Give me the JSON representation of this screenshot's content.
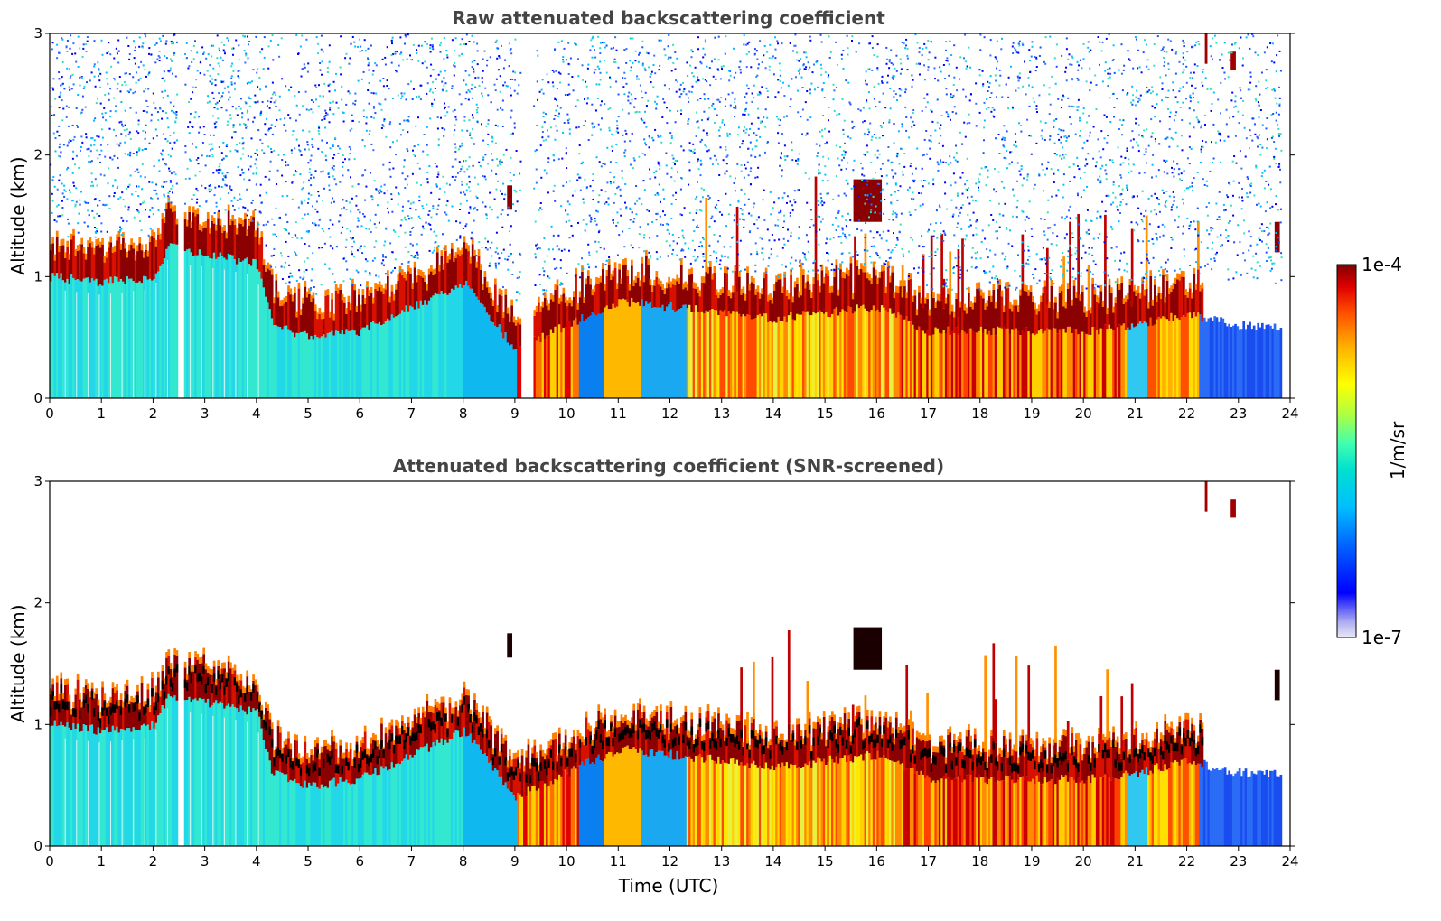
{
  "chart_data": [
    {
      "type": "heatmap",
      "title": "Raw attenuated backscattering coefficient",
      "xlabel": "",
      "ylabel": "Altitude (km)",
      "xlim": [
        0,
        24
      ],
      "ylim": [
        0,
        3
      ],
      "x_ticks": [
        "0",
        "1",
        "2",
        "3",
        "4",
        "5",
        "6",
        "7",
        "8",
        "9",
        "10",
        "11",
        "12",
        "13",
        "14",
        "15",
        "16",
        "17",
        "18",
        "19",
        "20",
        "21",
        "22",
        "23",
        "24"
      ],
      "y_ticks": [
        "0",
        "1",
        "2",
        "3"
      ],
      "colorscale": "jet",
      "grid": false,
      "data_gaps_utc": [
        [
          2.45,
          2.6
        ],
        [
          9.1,
          9.35
        ]
      ],
      "cloud_layer_base_km": [
        [
          0.0,
          1.0
        ],
        [
          1.0,
          0.95
        ],
        [
          2.0,
          1.0
        ],
        [
          2.3,
          1.25
        ],
        [
          2.7,
          1.2
        ],
        [
          3.5,
          1.15
        ],
        [
          4.0,
          1.1
        ],
        [
          4.3,
          0.6
        ],
        [
          5.0,
          0.5
        ],
        [
          6.0,
          0.55
        ],
        [
          7.0,
          0.75
        ],
        [
          8.0,
          0.95
        ],
        [
          9.0,
          0.4
        ],
        [
          10.0,
          0.6
        ],
        [
          11.0,
          0.8
        ],
        [
          12.0,
          0.75
        ],
        [
          13.0,
          0.7
        ],
        [
          14.0,
          0.65
        ],
        [
          15.0,
          0.7
        ],
        [
          16.0,
          0.75
        ],
        [
          17.0,
          0.55
        ],
        [
          18.0,
          0.55
        ],
        [
          19.0,
          0.55
        ],
        [
          20.0,
          0.55
        ],
        [
          21.0,
          0.6
        ],
        [
          22.0,
          0.7
        ],
        [
          23.0,
          0.6
        ],
        [
          23.8,
          0.6
        ]
      ]
    },
    {
      "type": "heatmap",
      "title": "Attenuated backscattering coefficient (SNR-screened)",
      "xlabel": "Time (UTC)",
      "ylabel": "Altitude (km)",
      "xlim": [
        0,
        24
      ],
      "ylim": [
        0,
        3
      ],
      "x_ticks": [
        "0",
        "1",
        "2",
        "3",
        "4",
        "5",
        "6",
        "7",
        "8",
        "9",
        "10",
        "11",
        "12",
        "13",
        "14",
        "15",
        "16",
        "17",
        "18",
        "19",
        "20",
        "21",
        "22",
        "23",
        "24"
      ],
      "y_ticks": [
        "0",
        "1",
        "2",
        "3"
      ],
      "colorscale": "jet",
      "grid": false,
      "data_gaps_utc": [
        [
          2.45,
          2.6
        ]
      ]
    }
  ],
  "colorbar": {
    "label": "1/m/sr",
    "min_label": "1e-7",
    "max_label": "1e-4",
    "colors_low_to_high": [
      "#e8e8f8",
      "#b0b0f0",
      "#0000ff",
      "#0066ff",
      "#00bfff",
      "#00e0d0",
      "#40ffb0",
      "#b0ff40",
      "#ffff00",
      "#ffb000",
      "#ff5000",
      "#e00000",
      "#800000"
    ]
  }
}
